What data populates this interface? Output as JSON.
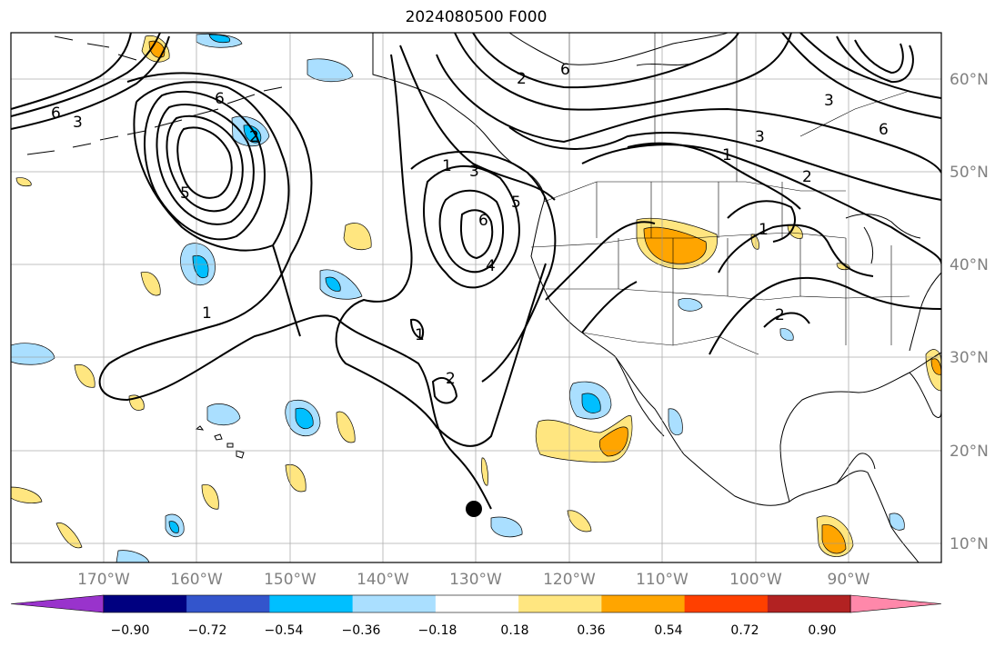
{
  "title": "2024080500 F000",
  "map": {
    "lon_labels": [
      "170°W",
      "160°W",
      "150°W",
      "140°W",
      "130°W",
      "120°W",
      "110°W",
      "100°W",
      "90°W"
    ],
    "lat_labels": [
      "60°N",
      "50°N",
      "40°N",
      "30°N",
      "20°N",
      "10°N"
    ],
    "grid": true
  },
  "contour_labels": [
    "6",
    "3",
    "5",
    "2",
    "6",
    "1",
    "1",
    "3",
    "6",
    "5",
    "4",
    "2",
    "1",
    "2",
    "1",
    "6",
    "6",
    "3",
    "2",
    "1",
    "3",
    "2"
  ],
  "colorbar": {
    "colors": [
      "#9933cc",
      "#000080",
      "#3355cc",
      "#00bfff",
      "#aadfff",
      "#ffffff",
      "#ffe680",
      "#ffa500",
      "#ff4000",
      "#b22222",
      "#ff88aa"
    ],
    "tick_labels": [
      "−0.90",
      "−0.72",
      "−0.54",
      "−0.36",
      "−0.18",
      "0.18",
      "0.36",
      "0.54",
      "0.72",
      "0.90"
    ]
  },
  "marker": {
    "type": "dot",
    "color": "#000000"
  }
}
